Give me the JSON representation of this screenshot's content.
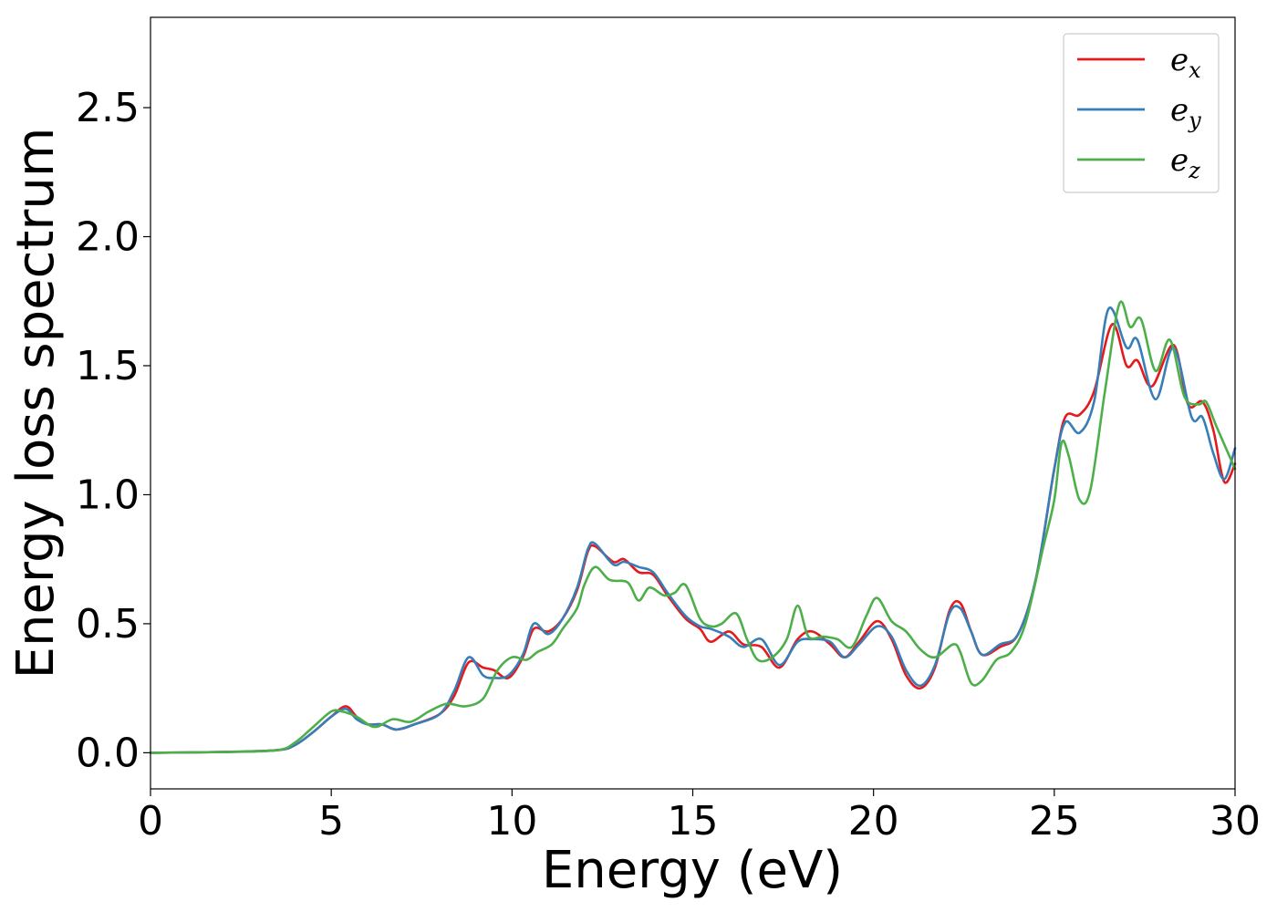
{
  "chart_data": {
    "type": "line",
    "title": "",
    "xlabel": "Energy (eV)",
    "ylabel": "Energy loss spectrum",
    "xlim": [
      0,
      30
    ],
    "ylim": [
      -0.14,
      2.85
    ],
    "xticks": [
      0,
      5,
      10,
      15,
      20,
      25,
      30
    ],
    "xtick_labels": [
      "0",
      "5",
      "10",
      "15",
      "20",
      "25",
      "30"
    ],
    "yticks": [
      0.0,
      0.5,
      1.0,
      1.5,
      2.0,
      2.5
    ],
    "ytick_labels": [
      "0.0",
      "0.5",
      "1.0",
      "1.5",
      "2.0",
      "2.5"
    ],
    "grid": false,
    "legend_position": "top-right",
    "series": [
      {
        "name": "e_x",
        "legend_base": "e",
        "legend_sub": "x",
        "color": "#e41a1c",
        "points": [
          [
            0,
            0
          ],
          [
            2,
            0.003
          ],
          [
            3.5,
            0.01
          ],
          [
            4,
            0.03
          ],
          [
            4.5,
            0.08
          ],
          [
            5,
            0.14
          ],
          [
            5.4,
            0.18
          ],
          [
            5.7,
            0.14
          ],
          [
            6,
            0.11
          ],
          [
            6.4,
            0.11
          ],
          [
            6.8,
            0.09
          ],
          [
            7.3,
            0.11
          ],
          [
            8,
            0.15
          ],
          [
            8.4,
            0.22
          ],
          [
            8.8,
            0.35
          ],
          [
            9.2,
            0.33
          ],
          [
            9.5,
            0.32
          ],
          [
            9.9,
            0.29
          ],
          [
            10.3,
            0.37
          ],
          [
            10.6,
            0.48
          ],
          [
            11,
            0.47
          ],
          [
            11.4,
            0.52
          ],
          [
            11.8,
            0.63
          ],
          [
            12.1,
            0.78
          ],
          [
            12.3,
            0.8
          ],
          [
            12.8,
            0.74
          ],
          [
            13.1,
            0.75
          ],
          [
            13.5,
            0.7
          ],
          [
            13.9,
            0.69
          ],
          [
            14.3,
            0.61
          ],
          [
            14.8,
            0.52
          ],
          [
            15.2,
            0.48
          ],
          [
            15.5,
            0.43
          ],
          [
            16,
            0.47
          ],
          [
            16.4,
            0.42
          ],
          [
            16.9,
            0.41
          ],
          [
            17.4,
            0.33
          ],
          [
            17.9,
            0.44
          ],
          [
            18.3,
            0.47
          ],
          [
            18.8,
            0.42
          ],
          [
            19.2,
            0.37
          ],
          [
            19.6,
            0.43
          ],
          [
            20.1,
            0.51
          ],
          [
            20.5,
            0.44
          ],
          [
            20.9,
            0.3
          ],
          [
            21.3,
            0.25
          ],
          [
            21.7,
            0.33
          ],
          [
            22.1,
            0.55
          ],
          [
            22.4,
            0.58
          ],
          [
            22.7,
            0.47
          ],
          [
            23,
            0.38
          ],
          [
            23.5,
            0.41
          ],
          [
            24,
            0.46
          ],
          [
            24.5,
            0.68
          ],
          [
            25,
            1.1
          ],
          [
            25.3,
            1.3
          ],
          [
            25.7,
            1.31
          ],
          [
            26.1,
            1.4
          ],
          [
            26.6,
            1.66
          ],
          [
            27,
            1.5
          ],
          [
            27.3,
            1.52
          ],
          [
            27.7,
            1.42
          ],
          [
            28.3,
            1.58
          ],
          [
            28.7,
            1.35
          ],
          [
            29.1,
            1.36
          ],
          [
            29.4,
            1.25
          ],
          [
            29.7,
            1.05
          ],
          [
            30,
            1.12
          ]
        ]
      },
      {
        "name": "e_y",
        "legend_base": "e",
        "legend_sub": "y",
        "color": "#377eb8",
        "points": [
          [
            0,
            0
          ],
          [
            2,
            0.003
          ],
          [
            3.5,
            0.01
          ],
          [
            4,
            0.03
          ],
          [
            4.5,
            0.08
          ],
          [
            5,
            0.14
          ],
          [
            5.4,
            0.17
          ],
          [
            5.7,
            0.13
          ],
          [
            6,
            0.11
          ],
          [
            6.4,
            0.11
          ],
          [
            6.8,
            0.09
          ],
          [
            7.3,
            0.11
          ],
          [
            8,
            0.15
          ],
          [
            8.4,
            0.24
          ],
          [
            8.8,
            0.37
          ],
          [
            9.2,
            0.3
          ],
          [
            9.5,
            0.29
          ],
          [
            9.9,
            0.3
          ],
          [
            10.3,
            0.38
          ],
          [
            10.6,
            0.5
          ],
          [
            11,
            0.46
          ],
          [
            11.4,
            0.52
          ],
          [
            11.8,
            0.64
          ],
          [
            12.1,
            0.79
          ],
          [
            12.3,
            0.81
          ],
          [
            12.8,
            0.73
          ],
          [
            13.1,
            0.74
          ],
          [
            13.5,
            0.72
          ],
          [
            13.9,
            0.7
          ],
          [
            14.3,
            0.62
          ],
          [
            14.8,
            0.53
          ],
          [
            15.2,
            0.49
          ],
          [
            15.5,
            0.48
          ],
          [
            16,
            0.45
          ],
          [
            16.4,
            0.41
          ],
          [
            16.9,
            0.44
          ],
          [
            17.4,
            0.34
          ],
          [
            17.9,
            0.43
          ],
          [
            18.3,
            0.44
          ],
          [
            18.8,
            0.43
          ],
          [
            19.2,
            0.37
          ],
          [
            19.6,
            0.42
          ],
          [
            20.1,
            0.49
          ],
          [
            20.5,
            0.45
          ],
          [
            20.9,
            0.32
          ],
          [
            21.3,
            0.26
          ],
          [
            21.7,
            0.34
          ],
          [
            22.1,
            0.54
          ],
          [
            22.4,
            0.56
          ],
          [
            22.7,
            0.47
          ],
          [
            23,
            0.38
          ],
          [
            23.5,
            0.42
          ],
          [
            24,
            0.46
          ],
          [
            24.5,
            0.68
          ],
          [
            25,
            1.1
          ],
          [
            25.3,
            1.28
          ],
          [
            25.7,
            1.24
          ],
          [
            26.1,
            1.36
          ],
          [
            26.5,
            1.72
          ],
          [
            27,
            1.57
          ],
          [
            27.3,
            1.6
          ],
          [
            27.8,
            1.37
          ],
          [
            28.3,
            1.57
          ],
          [
            28.8,
            1.3
          ],
          [
            29.1,
            1.3
          ],
          [
            29.4,
            1.16
          ],
          [
            29.7,
            1.06
          ],
          [
            30,
            1.18
          ]
        ]
      },
      {
        "name": "e_z",
        "legend_base": "e",
        "legend_sub": "z",
        "color": "#4daf4a",
        "points": [
          [
            0,
            0
          ],
          [
            2,
            0.003
          ],
          [
            3.5,
            0.01
          ],
          [
            4,
            0.04
          ],
          [
            4.5,
            0.1
          ],
          [
            5,
            0.16
          ],
          [
            5.3,
            0.16
          ],
          [
            5.7,
            0.14
          ],
          [
            6.2,
            0.1
          ],
          [
            6.7,
            0.13
          ],
          [
            7.2,
            0.12
          ],
          [
            7.7,
            0.16
          ],
          [
            8.2,
            0.19
          ],
          [
            8.7,
            0.18
          ],
          [
            9.2,
            0.21
          ],
          [
            9.6,
            0.32
          ],
          [
            10,
            0.37
          ],
          [
            10.4,
            0.36
          ],
          [
            10.7,
            0.39
          ],
          [
            11.1,
            0.42
          ],
          [
            11.4,
            0.48
          ],
          [
            11.8,
            0.56
          ],
          [
            12,
            0.65
          ],
          [
            12.3,
            0.72
          ],
          [
            12.7,
            0.67
          ],
          [
            13.2,
            0.66
          ],
          [
            13.5,
            0.59
          ],
          [
            13.8,
            0.64
          ],
          [
            14.2,
            0.61
          ],
          [
            14.5,
            0.62
          ],
          [
            14.8,
            0.65
          ],
          [
            15.2,
            0.52
          ],
          [
            15.5,
            0.49
          ],
          [
            15.8,
            0.5
          ],
          [
            16.2,
            0.54
          ],
          [
            16.5,
            0.44
          ],
          [
            16.8,
            0.36
          ],
          [
            17.2,
            0.37
          ],
          [
            17.6,
            0.44
          ],
          [
            17.9,
            0.57
          ],
          [
            18.2,
            0.45
          ],
          [
            18.6,
            0.45
          ],
          [
            19,
            0.44
          ],
          [
            19.4,
            0.41
          ],
          [
            19.8,
            0.53
          ],
          [
            20.1,
            0.6
          ],
          [
            20.5,
            0.51
          ],
          [
            20.9,
            0.47
          ],
          [
            21.3,
            0.4
          ],
          [
            21.7,
            0.37
          ],
          [
            22.2,
            0.42
          ],
          [
            22.4,
            0.39
          ],
          [
            22.7,
            0.27
          ],
          [
            23,
            0.28
          ],
          [
            23.4,
            0.36
          ],
          [
            23.8,
            0.39
          ],
          [
            24.2,
            0.5
          ],
          [
            24.7,
            0.8
          ],
          [
            25,
            0.98
          ],
          [
            25.2,
            1.2
          ],
          [
            25.4,
            1.15
          ],
          [
            25.7,
            0.98
          ],
          [
            26,
            1.02
          ],
          [
            26.4,
            1.4
          ],
          [
            26.8,
            1.74
          ],
          [
            27.1,
            1.65
          ],
          [
            27.4,
            1.68
          ],
          [
            27.8,
            1.48
          ],
          [
            28.2,
            1.6
          ],
          [
            28.6,
            1.38
          ],
          [
            29,
            1.35
          ],
          [
            29.2,
            1.36
          ],
          [
            29.5,
            1.26
          ],
          [
            30,
            1.1
          ]
        ]
      }
    ]
  }
}
